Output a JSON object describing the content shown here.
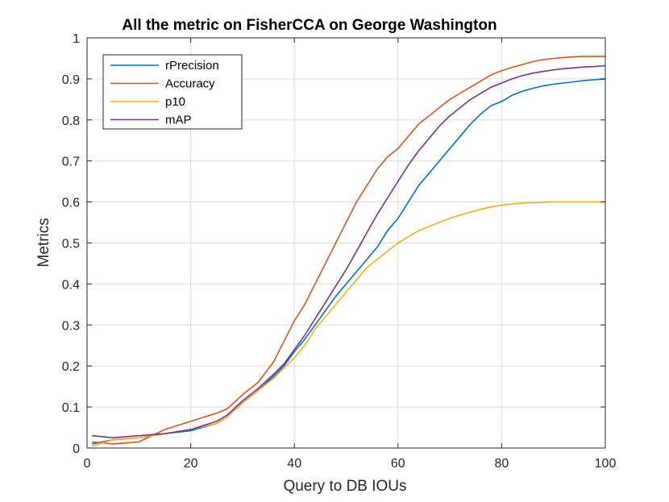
{
  "chart_data": {
    "type": "line",
    "title": "All the metric on FisherCCA on George Washington",
    "xlabel": "Query to DB IOUs",
    "ylabel": "Metrics",
    "xlim": [
      0,
      100
    ],
    "ylim": [
      0,
      1
    ],
    "grid": true,
    "legend_position": "top-left",
    "x_ticks": [
      "0",
      "20",
      "40",
      "60",
      "80",
      "100"
    ],
    "y_ticks": [
      "0",
      "0.1",
      "0.2",
      "0.3",
      "0.4",
      "0.5",
      "0.6",
      "0.7",
      "0.8",
      "0.9",
      "1"
    ],
    "x": [
      1,
      5,
      10,
      15,
      20,
      25,
      27,
      30,
      33,
      36,
      38,
      40,
      42,
      44,
      46,
      48,
      50,
      52,
      54,
      56,
      58,
      60,
      62,
      64,
      66,
      68,
      70,
      72,
      74,
      76,
      78,
      80,
      82,
      84,
      86,
      88,
      90,
      92,
      94,
      96,
      98,
      100
    ],
    "series": [
      {
        "name": "rPrecision",
        "color": "#0072BD",
        "values": [
          0.01,
          0.02,
          0.025,
          0.035,
          0.042,
          0.06,
          0.075,
          0.11,
          0.14,
          0.175,
          0.2,
          0.235,
          0.265,
          0.3,
          0.335,
          0.37,
          0.4,
          0.43,
          0.46,
          0.49,
          0.53,
          0.56,
          0.6,
          0.64,
          0.67,
          0.7,
          0.73,
          0.76,
          0.79,
          0.815,
          0.835,
          0.845,
          0.86,
          0.87,
          0.877,
          0.883,
          0.887,
          0.89,
          0.893,
          0.896,
          0.898,
          0.9
        ]
      },
      {
        "name": "Accuracy",
        "color": "#D95319",
        "values": [
          0.015,
          0.01,
          0.015,
          0.045,
          0.065,
          0.085,
          0.095,
          0.13,
          0.16,
          0.21,
          0.26,
          0.31,
          0.35,
          0.4,
          0.45,
          0.5,
          0.55,
          0.6,
          0.64,
          0.68,
          0.71,
          0.73,
          0.76,
          0.79,
          0.81,
          0.83,
          0.85,
          0.865,
          0.88,
          0.895,
          0.91,
          0.92,
          0.928,
          0.935,
          0.942,
          0.947,
          0.95,
          0.952,
          0.954,
          0.955,
          0.955,
          0.955
        ]
      },
      {
        "name": "p10",
        "color": "#EDB120",
        "values": [
          0.005,
          0.02,
          0.025,
          0.035,
          0.045,
          0.06,
          0.075,
          0.11,
          0.14,
          0.17,
          0.195,
          0.22,
          0.25,
          0.29,
          0.32,
          0.35,
          0.38,
          0.41,
          0.44,
          0.46,
          0.48,
          0.5,
          0.515,
          0.53,
          0.54,
          0.55,
          0.56,
          0.568,
          0.575,
          0.582,
          0.588,
          0.592,
          0.595,
          0.597,
          0.598,
          0.599,
          0.6,
          0.6,
          0.6,
          0.6,
          0.6,
          0.6
        ]
      },
      {
        "name": "mAP",
        "color": "#7E2F8E",
        "values": [
          0.03,
          0.025,
          0.03,
          0.035,
          0.045,
          0.065,
          0.08,
          0.115,
          0.145,
          0.18,
          0.205,
          0.24,
          0.275,
          0.315,
          0.355,
          0.395,
          0.435,
          0.48,
          0.525,
          0.57,
          0.61,
          0.65,
          0.69,
          0.725,
          0.755,
          0.785,
          0.81,
          0.83,
          0.85,
          0.865,
          0.88,
          0.89,
          0.9,
          0.908,
          0.914,
          0.918,
          0.922,
          0.925,
          0.927,
          0.929,
          0.93,
          0.932
        ]
      }
    ]
  }
}
